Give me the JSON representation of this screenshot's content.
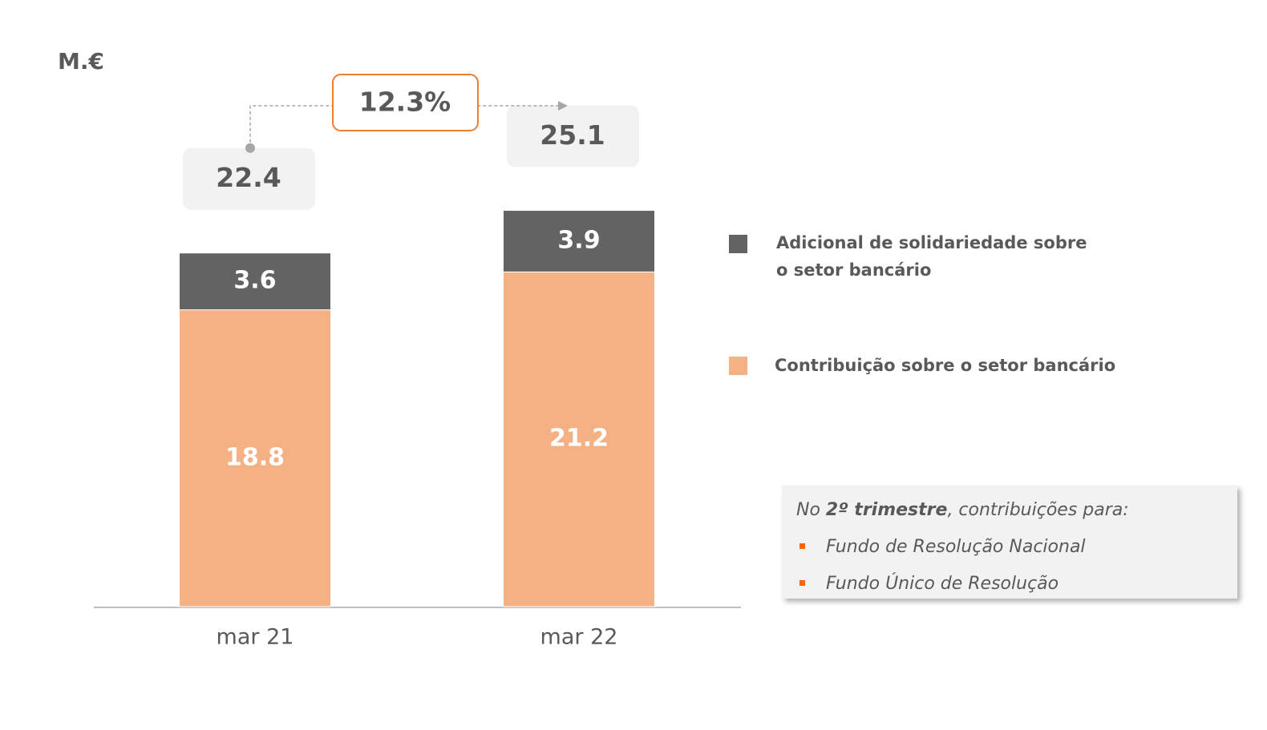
{
  "chart_data": {
    "type": "stacked_bar",
    "y_label": "M.€",
    "categories": [
      "mar 21",
      "mar 22"
    ],
    "series": [
      {
        "name": "Contribuição sobre o setor bancário",
        "color": "#f4b183",
        "values": [
          18.8,
          21.2
        ]
      },
      {
        "name": "Adicional de solidariedade sobre o setor bancário",
        "color": "#636363",
        "values": [
          3.6,
          3.9
        ]
      }
    ],
    "totals": [
      22.4,
      25.1
    ],
    "growth": {
      "value": 12.3,
      "label": "12.3%"
    },
    "note": {
      "intro": [
        "No ",
        "2º trimestre",
        ", contribuições para:"
      ],
      "items": [
        "Fundo de Resolução Nacional",
        "Fundo Único de Resolução"
      ]
    }
  }
}
